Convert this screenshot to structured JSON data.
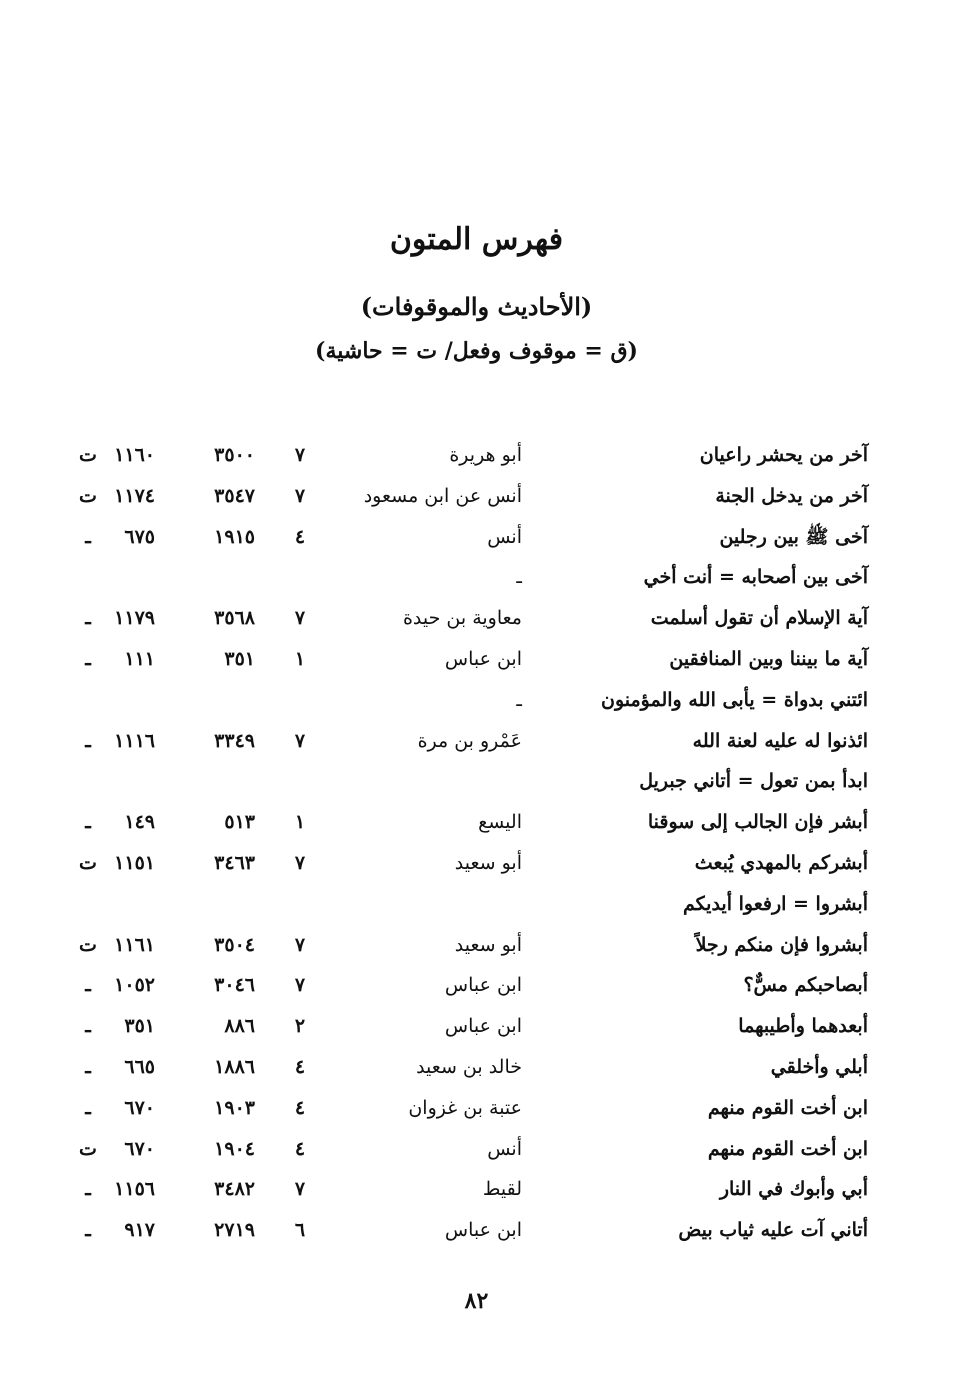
{
  "header": {
    "title": "فهرس المتون",
    "subtitle": "(الأحاديث والموقوفات)",
    "legend": "(ق = موقوف وفعل/ ت = حاشية)"
  },
  "rows": [
    {
      "text": "آخر من يحشر راعيان",
      "narrator": "أبو هريرة",
      "vol": "٧",
      "n1": "٣٥٠٠",
      "n2": "١١٦٠",
      "mark": "ت"
    },
    {
      "text": "آخر من يدخل الجنة",
      "narrator": "أنس عن ابن مسعود",
      "vol": "٧",
      "n1": "٣٥٤٧",
      "n2": "١١٧٤",
      "mark": "ت"
    },
    {
      "text": "آخى ﷺ بين رجلين",
      "narrator": "أنس",
      "vol": "٤",
      "n1": "١٩١٥",
      "n2": "٦٧٥",
      "mark": "ـ"
    },
    {
      "text": "آخى بين أصحابه = أنت أخي",
      "narrator": "ـ",
      "vol": "",
      "n1": "",
      "n2": "",
      "mark": ""
    },
    {
      "text": "آية الإسلام أن تقول أسلمت",
      "narrator": "معاوية بن حيدة",
      "vol": "٧",
      "n1": "٣٥٦٨",
      "n2": "١١٧٩",
      "mark": "ـ"
    },
    {
      "text": "آية ما بيننا وبين المنافقين",
      "narrator": "ابن عباس",
      "vol": "١",
      "n1": "٣٥١",
      "n2": "١١١",
      "mark": "ـ"
    },
    {
      "text": "ائتني بدواة = يأبى الله والمؤمنون",
      "narrator": "ـ",
      "vol": "",
      "n1": "",
      "n2": "",
      "mark": ""
    },
    {
      "text": "ائذنوا له عليه لعنة الله",
      "narrator": "عَمْرو بن مرة",
      "vol": "٧",
      "n1": "٣٣٤٩",
      "n2": "١١١٦",
      "mark": "ـ"
    },
    {
      "text": "ابدأ بمن تعول = أتاني جبريل",
      "narrator": "",
      "vol": "",
      "n1": "",
      "n2": "",
      "mark": ""
    },
    {
      "text": "أبشر فإن الجالب إلى سوقنا",
      "narrator": "اليسع",
      "vol": "١",
      "n1": "٥١٣",
      "n2": "١٤٩",
      "mark": "ـ"
    },
    {
      "text": "أبشركم بالمهدي يُبعث",
      "narrator": "أبو سعيد",
      "vol": "٧",
      "n1": "٣٤٦٣",
      "n2": "١١٥١",
      "mark": "ت"
    },
    {
      "text": "أبشروا = ارفعوا أيديكم",
      "narrator": "",
      "vol": "",
      "n1": "",
      "n2": "",
      "mark": ""
    },
    {
      "text": "أبشروا فإن منكم رجلاً",
      "narrator": "أبو سعيد",
      "vol": "٧",
      "n1": "٣٥٠٤",
      "n2": "١١٦١",
      "mark": "ت"
    },
    {
      "text": "أبصاحبكم مسٌّ؟",
      "narrator": "ابن عباس",
      "vol": "٧",
      "n1": "٣٠٤٦",
      "n2": "١٠٥٢",
      "mark": "ـ"
    },
    {
      "text": "أبعدهما وأطيبهما",
      "narrator": "ابن عباس",
      "vol": "٢",
      "n1": "٨٨٦",
      "n2": "٣٥١",
      "mark": "ـ"
    },
    {
      "text": "أبلي وأخلقي",
      "narrator": "خالد بن سعيد",
      "vol": "٤",
      "n1": "١٨٨٦",
      "n2": "٦٦٥",
      "mark": "ـ"
    },
    {
      "text": "ابن أخت القوم منهم",
      "narrator": "عتبة بن غزوان",
      "vol": "٤",
      "n1": "١٩٠٣",
      "n2": "٦٧٠",
      "mark": "ـ"
    },
    {
      "text": "ابن أخت القوم منهم",
      "narrator": "أنس",
      "vol": "٤",
      "n1": "١٩٠٤",
      "n2": "٦٧٠",
      "mark": "ت"
    },
    {
      "text": "أبي وأبوك في النار",
      "narrator": "لقيط",
      "vol": "٧",
      "n1": "٣٤٨٢",
      "n2": "١١٥٦",
      "mark": "ـ"
    },
    {
      "text": "أتاني آت عليه ثياب بيض",
      "narrator": "ابن عباس",
      "vol": "٦",
      "n1": "٢٧١٩",
      "n2": "٩١٧",
      "mark": "ـ"
    }
  ],
  "footer": {
    "page_number": "٨٢"
  }
}
